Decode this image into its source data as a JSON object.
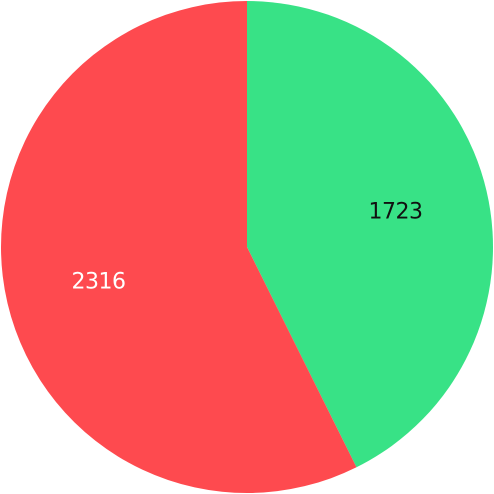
{
  "chart_data": {
    "type": "pie",
    "title": "",
    "start_angle_deg": 0,
    "direction": "clockwise",
    "legend": "none",
    "slices": [
      {
        "label": "",
        "value": 1723,
        "display": "1723",
        "color": "#38e286",
        "label_color": "#111111"
      },
      {
        "label": "",
        "value": 2316,
        "display": "2316",
        "color": "#fe4a4f",
        "label_color": "#ffffff"
      }
    ]
  }
}
